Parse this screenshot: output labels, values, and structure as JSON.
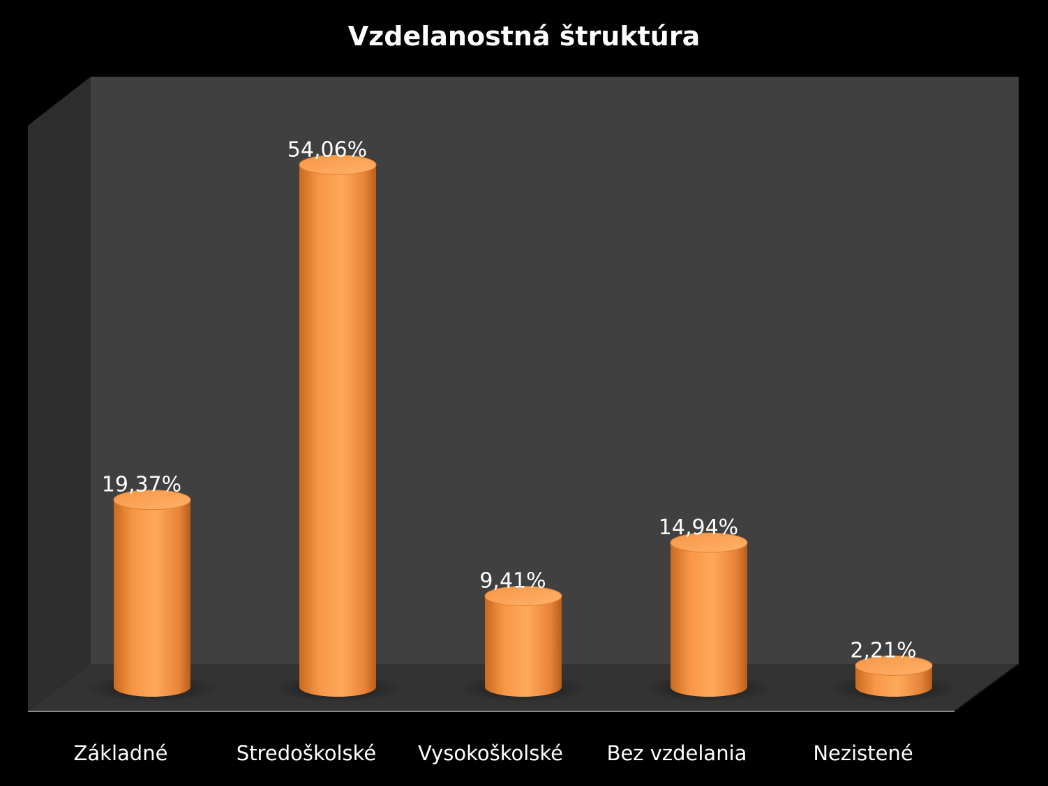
{
  "chart_data": {
    "type": "bar",
    "title": "Vzdelanostná štruktúra",
    "categories": [
      "Základné",
      "Stredoškolské",
      "Vysokoškolské",
      "Bez vzdelania",
      "Nezistené"
    ],
    "values": [
      19.37,
      54.06,
      9.41,
      14.94,
      2.21
    ],
    "value_labels": [
      "19,37%",
      "54,06%",
      "9,41%",
      "14,94%",
      "2,21%"
    ],
    "unit": "%",
    "xlabel": "",
    "ylabel": "",
    "ylim": [
      0,
      60
    ],
    "grid": false,
    "legend": "none",
    "style": "3d-cylinder",
    "colors": {
      "bar": "#F79646",
      "bar_light": "#FFAE5E",
      "bar_dark": "#C96A1E",
      "background": "#000000",
      "back_wall": "#404040",
      "side_wall": "#2E2E2E",
      "floor": "#333333",
      "text": "#FFFFFF"
    }
  }
}
